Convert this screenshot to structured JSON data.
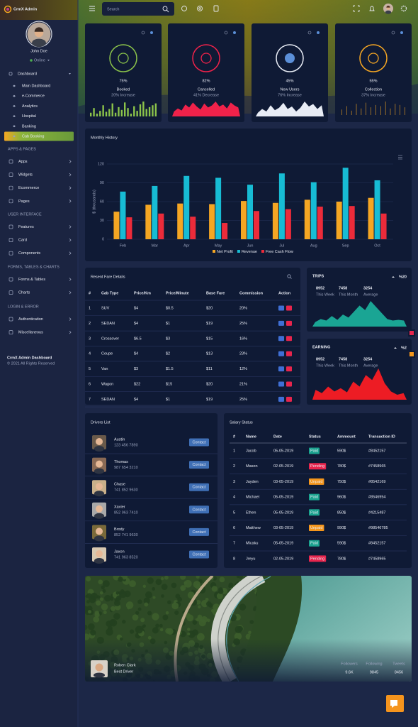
{
  "sidebar": {
    "brand": "CrmX Admin",
    "user": {
      "name": "John Doe",
      "status": "Online"
    },
    "menu": {
      "label": "Dashboard",
      "children": [
        "Main Dashboard",
        "e-Commerce",
        "Analytics",
        "Hospital",
        "Banking",
        "Cab Booking"
      ]
    },
    "sections": [
      {
        "heading": "APPS & PAGES",
        "items": [
          "Apps",
          "Widgets",
          "Ecommerce",
          "Pages"
        ]
      },
      {
        "heading": "USER INTERFACE",
        "items": [
          "Features",
          "Card",
          "Components"
        ]
      },
      {
        "heading": "FORMS, TABLES & CHARTS",
        "items": [
          "Forms & Tables",
          "Charts"
        ]
      },
      {
        "heading": "LOGIN & ERROR",
        "items": [
          "Authentication",
          "Miscellaneous"
        ]
      }
    ],
    "footer": [
      "CrmX Admin Dashboard",
      "© 2021 All Rights Reserved"
    ]
  },
  "topbar": {
    "search_placeholder": "Search"
  },
  "stat_cards": [
    {
      "value": "75%",
      "label": "Booked",
      "change": "20% Increase",
      "color": "#8bc34a",
      "sparkline_type": "bar",
      "sparkline": [
        4,
        9,
        3,
        6,
        12,
        5,
        8,
        14,
        4,
        10,
        7,
        15,
        9,
        3,
        11,
        6,
        13,
        16,
        8,
        10,
        12,
        14
      ]
    },
    {
      "value": "82%",
      "label": "Cancelled",
      "change": "41% Decrease",
      "color": "#f0224a",
      "sparkline_type": "area",
      "sparkline": [
        5,
        8,
        6,
        12,
        9,
        14,
        10,
        7,
        13,
        9,
        11,
        15,
        10,
        12,
        8,
        14,
        11,
        9
      ]
    },
    {
      "value": "45%",
      "label": "New Users",
      "change": "76% Increase",
      "color": "#e8ecf5",
      "sparkline_type": "area",
      "sparkline": [
        3,
        6,
        4,
        9,
        5,
        7,
        11,
        6,
        8,
        4,
        7,
        12,
        8,
        10,
        6,
        9
      ]
    },
    {
      "value": "55%",
      "label": "Collection",
      "change": "37% Increase",
      "color": "#f5a623",
      "sparkline_type": "candle",
      "sparkline": [
        6,
        9,
        5,
        11,
        7,
        12,
        8,
        10,
        9,
        13,
        7,
        11,
        10,
        8
      ]
    }
  ],
  "chart_data": {
    "type": "bar",
    "title": "Monthly History",
    "y_label": "$ (thousands)",
    "categories": [
      "Feb",
      "Mar",
      "Apr",
      "May",
      "Jun",
      "Jul",
      "Aug",
      "Sep",
      "Oct"
    ],
    "series": [
      {
        "name": "Net Profit",
        "color": "#f5a623",
        "values": [
          44,
          55,
          57,
          56,
          61,
          58,
          63,
          60,
          66
        ]
      },
      {
        "name": "Revenue",
        "color": "#17bcd4",
        "values": [
          76,
          85,
          101,
          98,
          87,
          105,
          91,
          114,
          94
        ]
      },
      {
        "name": "Free Cash Flow",
        "color": "#ec2b3a",
        "values": [
          35,
          41,
          36,
          26,
          45,
          48,
          52,
          53,
          41
        ]
      }
    ],
    "ylim": [
      0,
      120
    ],
    "yticks": [
      0,
      30,
      60,
      90,
      120
    ],
    "grid": true,
    "legend": "bottom"
  },
  "fare_table": {
    "title": "Resent Fare Details",
    "columns": [
      "#",
      "Cab Type",
      "Price/Km",
      "Price/Minute",
      "Base Fare",
      "Commission",
      "Action"
    ],
    "rows": [
      [
        1,
        "SUV",
        "$4",
        "$0.5",
        "$20",
        "20%"
      ],
      [
        2,
        "SEDAN",
        "$4",
        "$1",
        "$19",
        "25%"
      ],
      [
        3,
        "Crossover",
        "$6.5",
        "$3",
        "$15",
        "16%"
      ],
      [
        4,
        "Coupe",
        "$4",
        "$2",
        "$13",
        "23%"
      ],
      [
        5,
        "Van",
        "$3",
        "$1.5",
        "$11",
        "12%"
      ],
      [
        6,
        "Wagon",
        "$22",
        "$15",
        "$20",
        "21%"
      ],
      [
        7,
        "SEDAN",
        "$4",
        "$1",
        "$19",
        "25%"
      ]
    ]
  },
  "trips": {
    "title": "TRIPS",
    "change": "%20",
    "color": "#1aa594",
    "stats": [
      {
        "value": 8952,
        "label": "This Week"
      },
      {
        "value": 7458,
        "label": "This Month"
      },
      {
        "value": 3254,
        "label": "Average"
      }
    ],
    "values": [
      6,
      10,
      8,
      14,
      9,
      16,
      12,
      20,
      28,
      22,
      34,
      26,
      18,
      10,
      8,
      9,
      8
    ]
  },
  "earning": {
    "title": "EARNING",
    "change": "%2",
    "color": "#ed1c24",
    "stats": [
      {
        "value": 8952,
        "label": "This Week"
      },
      {
        "value": 7458,
        "label": "This Month"
      },
      {
        "value": 3254,
        "label": "Average"
      }
    ],
    "values": [
      12,
      8,
      16,
      10,
      14,
      9,
      22,
      16,
      30,
      24,
      38,
      20,
      10,
      6,
      8
    ]
  },
  "drivers": {
    "title": "Drivers List",
    "button": "Contact",
    "items": [
      {
        "name": "Austin",
        "phone": "123 456 7890"
      },
      {
        "name": "Thomas",
        "phone": "987 654 3210"
      },
      {
        "name": "Chase",
        "phone": "741 852 9630"
      },
      {
        "name": "Xavier",
        "phone": "852 963 7410"
      },
      {
        "name": "Brody",
        "phone": "852 741 9630"
      },
      {
        "name": "Jaxon",
        "phone": "741 963 8520"
      }
    ]
  },
  "salary": {
    "title": "Salary Status",
    "columns": [
      "#",
      "Name",
      "Date",
      "Status",
      "Ammount",
      "Transaction ID"
    ],
    "rows": [
      [
        1,
        "Jacob",
        "05-05-2019",
        {
          "text": "Paid",
          "color": "#1ba38f"
        },
        "590$",
        "#8452157"
      ],
      [
        2,
        "Mason",
        "02-05-2019",
        {
          "text": "Pending",
          "color": "#e8254d"
        },
        "780$",
        "#7458965"
      ],
      [
        3,
        "Jayden",
        "03-05-2019",
        {
          "text": "Unpaid",
          "color": "#f5961c"
        },
        "750$",
        "#8542169"
      ],
      [
        4,
        "Michael",
        "05-05-2019",
        {
          "text": "Paid",
          "color": "#1ba38f"
        },
        "960$",
        "#8546954"
      ],
      [
        5,
        "Ethen",
        "05-05-2019",
        {
          "text": "Paid",
          "color": "#1ba38f"
        },
        "850$",
        "#4215487"
      ],
      [
        6,
        "Matthew",
        "03-05-2019",
        {
          "text": "Unpaid",
          "color": "#f5961c"
        },
        "990$",
        "#98546785"
      ],
      [
        7,
        "Micaku",
        "05-05-2019",
        {
          "text": "Paid",
          "color": "#1ba38f"
        },
        "590$",
        "#8452157"
      ],
      [
        8,
        "Jreyu",
        "02-05-2019",
        {
          "text": "Pending",
          "color": "#e8254d"
        },
        "780$",
        "#7458965"
      ]
    ]
  },
  "profile": {
    "name": "Roben Clark",
    "role": "Best Driver",
    "stats": [
      {
        "label": "Followers",
        "value": "9.6K"
      },
      {
        "label": "Following",
        "value": 9845
      },
      {
        "label": "Tweets",
        "value": 8456
      }
    ]
  }
}
